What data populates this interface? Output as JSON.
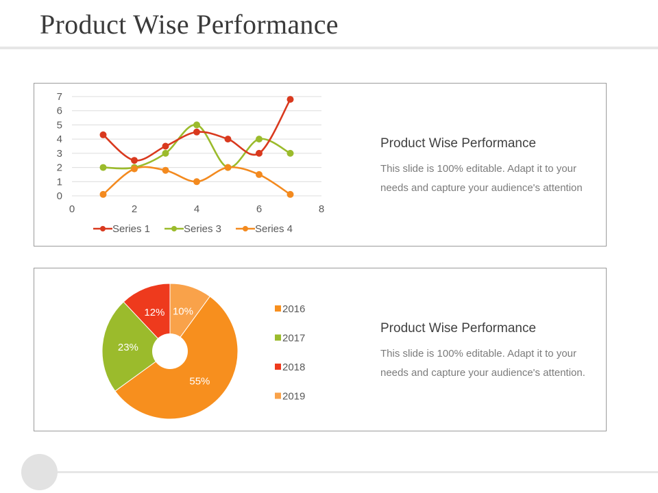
{
  "header": {
    "title": "Product Wise Performance"
  },
  "line_panel": {
    "heading": "Product Wise Performance",
    "body": "This slide is 100% editable. Adapt it to your needs and capture your audience's attention"
  },
  "pie_panel": {
    "heading": "Product Wise Performance",
    "body": "This slide is 100% editable. Adapt it to your needs and capture your audience's attention."
  },
  "chart_data": [
    {
      "type": "line",
      "smooth": true,
      "xlim": [
        0,
        8
      ],
      "ylim": [
        0,
        7
      ],
      "x_ticks": [
        "0",
        "2",
        "4",
        "6",
        "8"
      ],
      "y_ticks": [
        "0",
        "1",
        "2",
        "3",
        "4",
        "5",
        "6",
        "7"
      ],
      "grid": true,
      "legend_position": "bottom",
      "series": [
        {
          "name": "Series 1",
          "color": "#d9391e",
          "points": [
            [
              1,
              4.3
            ],
            [
              2,
              2.5
            ],
            [
              3,
              3.5
            ],
            [
              4,
              4.5
            ],
            [
              5,
              4.0
            ],
            [
              6,
              3.0
            ],
            [
              7,
              6.8
            ]
          ]
        },
        {
          "name": "Series 3",
          "color": "#9bbb2c",
          "points": [
            [
              1,
              2.0
            ],
            [
              2,
              2.0
            ],
            [
              3,
              3.0
            ],
            [
              4,
              5.0
            ],
            [
              5,
              2.0
            ],
            [
              6,
              4.0
            ],
            [
              7,
              3.0
            ]
          ]
        },
        {
          "name": "Series 4",
          "color": "#f38a1f",
          "points": [
            [
              1,
              0.1
            ],
            [
              2,
              1.9
            ],
            [
              3,
              1.8
            ],
            [
              4,
              1.0
            ],
            [
              5,
              2.0
            ],
            [
              6,
              1.5
            ],
            [
              7,
              0.1
            ]
          ]
        }
      ]
    },
    {
      "type": "pie",
      "doughnut_hole": true,
      "legend_position": "right",
      "slices": [
        {
          "label": "2016",
          "value": 55,
          "display": "55%",
          "color": "#f78f1e"
        },
        {
          "label": "2017",
          "value": 23,
          "display": "23%",
          "color": "#9bbb2c"
        },
        {
          "label": "2018",
          "value": 12,
          "display": "12%",
          "color": "#ee3a1d"
        },
        {
          "label": "2019",
          "value": 10,
          "display": "10%",
          "color": "#f9a24a"
        }
      ]
    }
  ]
}
